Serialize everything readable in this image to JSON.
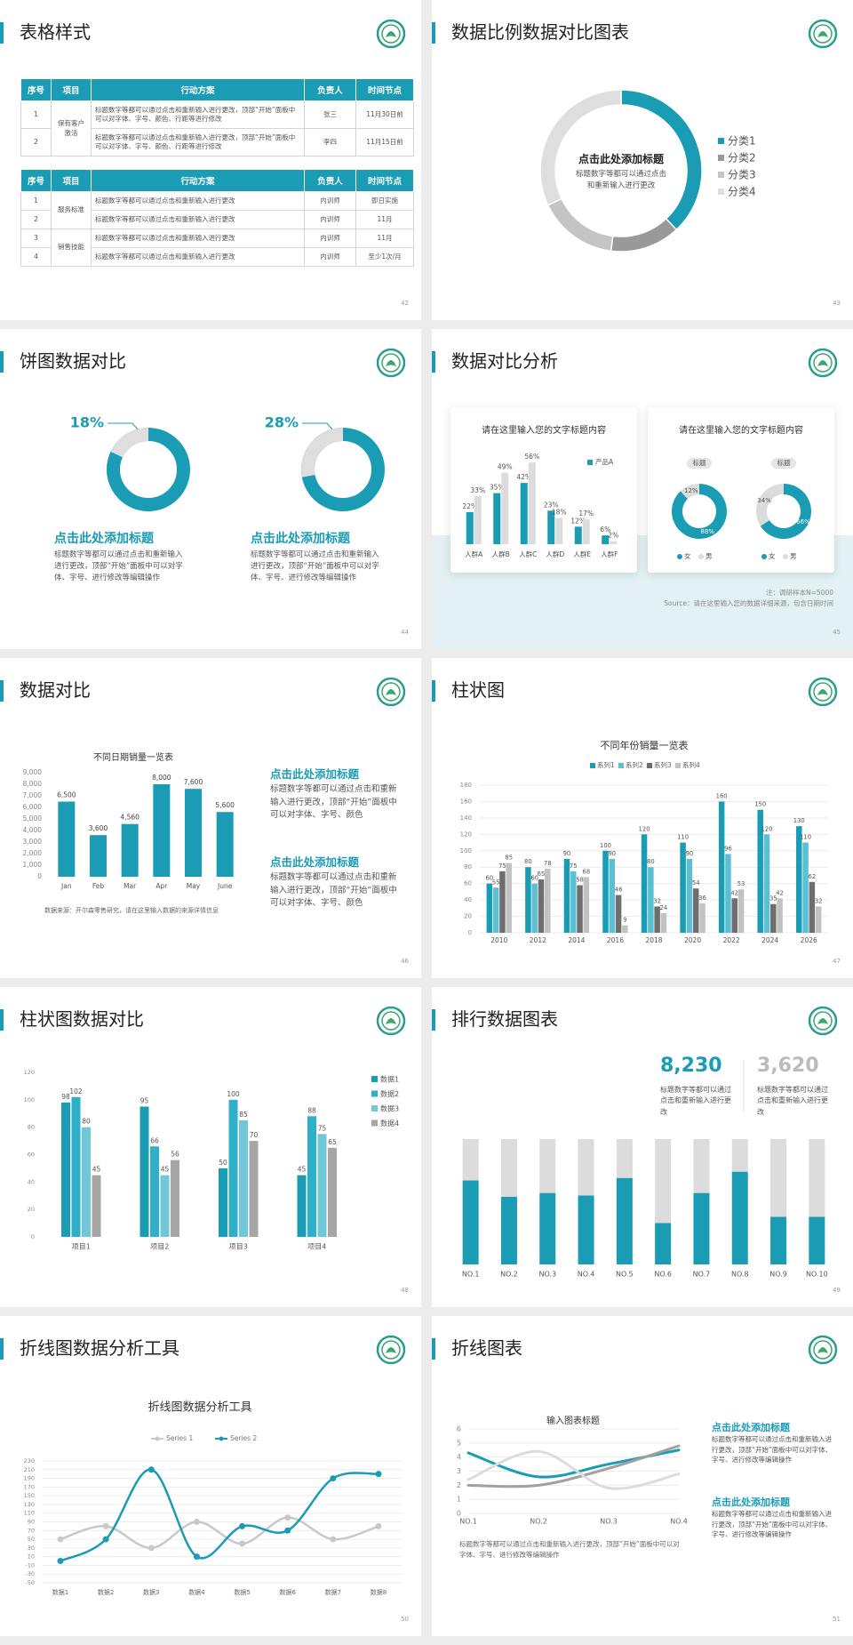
{
  "slides": [
    {
      "title": "表格样式",
      "page": 42,
      "tables": [
        {
          "header": [
            "序号",
            "项目",
            "行动方案",
            "负责人",
            "时间节点"
          ],
          "groups": [
            {
              "item": "保有客户激活",
              "rows": [
                [
                  "1",
                  "标题数字等都可以通过点击和重新输入进行更改，顶部“开始”面板中可以对字体、字号、颜色、行距等进行修改",
                  "张三",
                  "11月30日前"
                ],
                [
                  "2",
                  "标题数字等都可以通过点击和重新输入进行更改，顶部“开始”面板中可以对字体、字号、颜色、行距等进行修改",
                  "李四",
                  "11月15日前"
                ]
              ]
            }
          ]
        },
        {
          "header": [
            "序号",
            "项目",
            "行动方案",
            "负责人",
            "时间节点"
          ],
          "groups": [
            {
              "item": "服务标准",
              "rows": [
                [
                  "1",
                  "标题数字等都可以通过点击和重新输入进行更改",
                  "内训师",
                  "即日实施"
                ],
                [
                  "2",
                  "标题数字等都可以通过点击和重新输入进行更改",
                  "内训师",
                  "11月"
                ]
              ]
            },
            {
              "item": "销售技能",
              "rows": [
                [
                  "3",
                  "标题数字等都可以通过点击和重新输入进行更改",
                  "内训师",
                  "11月"
                ],
                [
                  "4",
                  "标题数字等都可以通过点击和重新输入进行更改",
                  "内训师",
                  "至少1次/月"
                ]
              ]
            }
          ]
        }
      ]
    },
    {
      "title": "数据比例数据对比图表",
      "page": 43,
      "chart_data": {
        "type": "donut",
        "heading": "点击此处添加标题",
        "text": "标题数字等都可以通过点击和重新输入进行更改",
        "categories": [
          "分类1",
          "分类2",
          "分类3",
          "分类4"
        ],
        "values": [
          38,
          14,
          16,
          32
        ],
        "colors": [
          "#1a9cb5",
          "#999999",
          "#c4c4c4",
          "#dedede"
        ]
      }
    },
    {
      "title": "饼图数据对比",
      "page": 44,
      "chart_data": {
        "type": "ring",
        "values": [
          18,
          28
        ],
        "value_labels": [
          "18%",
          "28%"
        ],
        "colors": [
          "#dedede",
          "#1a9cb5"
        ]
      },
      "blocks": [
        {
          "heading": "点击此处添加标题",
          "text": "标题数字等都可以通过点击和重新输入进行更改，顶部“开始”面板中可以对字体、字号、进行修改等编辑操作"
        },
        {
          "heading": "点击此处添加标题",
          "text": "标题数字等都可以通过点击和重新输入进行更改，顶部“开始”面板中可以对字体、字号、进行修改等编辑操作"
        }
      ]
    },
    {
      "title": "数据对比分析",
      "page": 45,
      "cards": [
        {
          "title": "请在这里输入您的文字标题内容",
          "chart_data": {
            "type": "grouped-bar",
            "categories": [
              "人群A",
              "人群B",
              "人群C",
              "人群D",
              "人群E",
              "人群F"
            ],
            "series": [
              {
                "name": "产品A",
                "color": "#1a9cb5",
                "values": [
                  22,
                  35,
                  42,
                  23,
                  12,
                  6
                ],
                "value_labels": [
                  "22%",
                  "35%",
                  "42%",
                  "23%",
                  "12%",
                  "6%"
                ]
              },
              {
                "color": "#dcdcdc",
                "values": [
                  33,
                  49,
                  56,
                  18,
                  17,
                  2
                ],
                "value_labels": [
                  "33%",
                  "49%",
                  "56%",
                  "18%",
                  "17%",
                  "2%"
                ]
              }
            ]
          }
        },
        {
          "title": "请在这里输入您的文字标题内容",
          "chart_data": {
            "type": "donut-pair",
            "categories": [
              "女",
              "男"
            ],
            "colors": [
              "#1a9cb5",
              "#dcdcdc"
            ],
            "donuts": [
              {
                "label": "标题",
                "values": [
                  88,
                  12
                ],
                "value_labels": [
                  "88%",
                  "12%"
                ]
              },
              {
                "label": "标题",
                "values": [
                  66,
                  34
                ],
                "value_labels": [
                  "66%",
                  "34%"
                ]
              }
            ]
          }
        }
      ],
      "notes": [
        "注：调研样本N=5000",
        "Source：请在这里输入您的数据详细来源，包含日期时间"
      ]
    },
    {
      "title": "数据对比",
      "page": 46,
      "chart_data": {
        "type": "bar",
        "title": "不同日期销量一览表",
        "categories": [
          "Jan",
          "Feb",
          "Mar",
          "Apr",
          "May",
          "June"
        ],
        "values": [
          6500,
          3600,
          4560,
          8000,
          7600,
          5600
        ],
        "value_labels": [
          "6,500",
          "3,600",
          "4,560",
          "8,000",
          "7,600",
          "5,600"
        ],
        "color": "#1a9cb5",
        "ylim": [
          0,
          9000
        ],
        "yticks": [
          0,
          {
            "value": 1000,
            "label": "1,000"
          },
          {
            "value": 2000,
            "label": "2,000"
          },
          {
            "value": 3000,
            "label": "3,000"
          },
          {
            "value": 4000,
            "label": "4,000"
          },
          {
            "value": 5000,
            "label": "5,000"
          },
          {
            "value": 6000,
            "label": "6,000"
          },
          {
            "value": 7000,
            "label": "7,000"
          },
          {
            "value": 8000,
            "label": "8,000"
          },
          {
            "value": 9000,
            "label": "9,000"
          }
        ],
        "source": "数据来源：开尔森零售研究，请在这里输入数据的来源详情信息"
      },
      "blocks": [
        {
          "heading": "点击此处添加标题",
          "text": "标题数字等都可以通过点击和重新输入进行更改，顶部“开始”面板中可以对字体、字号、颜色"
        },
        {
          "heading": "点击此处添加标题",
          "text": "标题数字等都可以通过点击和重新输入进行更改，顶部“开始”面板中可以对字体、字号、颜色"
        }
      ]
    },
    {
      "title": "柱状图",
      "page": 47,
      "chart_data": {
        "type": "grouped-bar",
        "title": "不同年份销量一览表",
        "legend": "top",
        "grid": true,
        "categories": [
          "2010",
          "2012",
          "2014",
          "2016",
          "2018",
          "2020",
          "2022",
          "2024",
          "2026"
        ],
        "ylim": [
          0,
          180
        ],
        "yticks": [
          0,
          20,
          40,
          60,
          80,
          100,
          120,
          140,
          160,
          180
        ],
        "series": [
          {
            "name": "系列1",
            "color": "#1a9cb5",
            "values": [
              60,
              80,
              90,
              100,
              120,
              110,
              160,
              150,
              130
            ]
          },
          {
            "name": "系列2",
            "color": "#5cbfd3",
            "values": [
              55,
              60,
              75,
              90,
              80,
              90,
              96,
              120,
              110
            ]
          },
          {
            "name": "系列3",
            "color": "#6e6e6e",
            "values": [
              75,
              65,
              58,
              46,
              32,
              54,
              42,
              35,
              62
            ]
          },
          {
            "name": "系列4",
            "color": "#c2c2c2",
            "values": [
              85,
              78,
              68,
              9,
              24,
              36,
              53,
              42,
              32
            ]
          }
        ]
      }
    },
    {
      "title": "柱状图数据对比",
      "page": 48,
      "chart_data": {
        "type": "grouped-bar",
        "legend": "right",
        "categories": [
          "项目1",
          "项目2",
          "项目3",
          "项目4"
        ],
        "ylim": [
          0,
          120
        ],
        "yticks": [
          0,
          20,
          40,
          60,
          80,
          100,
          120
        ],
        "series": [
          {
            "name": "数据1",
            "color": "#1a9cb5",
            "values": [
              98,
              95,
              50,
              45
            ]
          },
          {
            "name": "数据2",
            "color": "#2fb0c9",
            "values": [
              102,
              66,
              100,
              88
            ]
          },
          {
            "name": "数据3",
            "color": "#6fc7d8",
            "values": [
              80,
              45,
              85,
              75
            ]
          },
          {
            "name": "数据4",
            "color": "#a6a6a6",
            "values": [
              45,
              56,
              70,
              65
            ]
          }
        ]
      }
    },
    {
      "title": "排行数据图表",
      "page": 49,
      "stats": [
        {
          "value": "8,230",
          "text": "标题数字等都可以通过点击和重新输入进行更改"
        },
        {
          "value": "3,620",
          "text": "标题数字等都可以通过点击和重新输入进行更改"
        }
      ],
      "chart_data": {
        "type": "stacked-bar",
        "categories": [
          "NO.1",
          "NO.2",
          "NO.3",
          "NO.4",
          "NO.5",
          "NO.6",
          "NO.7",
          "NO.8",
          "NO.9",
          "NO.10"
        ],
        "series": [
          {
            "color": "#1a9cb5",
            "values": [
              67,
              54,
              57,
              55,
              69,
              33,
              57,
              74,
              38,
              38
            ]
          },
          {
            "color": "#dcdcdc",
            "values": [
              33,
              46,
              43,
              45,
              31,
              67,
              43,
              26,
              62,
              62
            ]
          }
        ]
      }
    },
    {
      "title": "折线图数据分析工具",
      "page": 50,
      "chart_data": {
        "type": "line",
        "title": "折线图数据分析工具",
        "smooth": true,
        "markers": true,
        "grid": true,
        "categories": [
          "数据1",
          "数据2",
          "数据3",
          "数据4",
          "数据5",
          "数据6",
          "数据7",
          "数据8"
        ],
        "ylim": [
          -50,
          230
        ],
        "yticks": [
          -50,
          -30,
          -10,
          10,
          30,
          50,
          70,
          90,
          110,
          130,
          150,
          170,
          190,
          210,
          230
        ],
        "series": [
          {
            "name": "Series 1",
            "color": "#c8c8c8",
            "values": [
              50,
              80,
              30,
              90,
              40,
              100,
              50,
              80
            ]
          },
          {
            "name": "Series 2",
            "color": "#1a9cb5",
            "values": [
              0,
              50,
              210,
              10,
              80,
              70,
              190,
              200
            ]
          }
        ]
      }
    },
    {
      "title": "折线图表",
      "page": 51,
      "chart_data": {
        "type": "line",
        "title": "输入图表标题",
        "smooth": true,
        "grid": true,
        "categories": [
          "NO.1",
          "NO.2",
          "NO.3",
          "NO.4"
        ],
        "ylim": [
          0,
          6
        ],
        "yticks": [
          0,
          1,
          2,
          3,
          4,
          5,
          6
        ],
        "series": [
          {
            "color": "#1a9cb5",
            "values": [
              4.3,
              2.6,
              3.5,
              4.5
            ]
          },
          {
            "color": "#a0a0a0",
            "values": [
              2,
              2,
              3.2,
              4.8
            ]
          },
          {
            "color": "#dcdcdc",
            "values": [
              2.4,
              4.4,
              1.8,
              2.8
            ]
          }
        ]
      },
      "blocks": [
        {
          "heading": "点击此处添加标题",
          "text": "标题数字等都可以通过点击和重新输入进行更改，顶部“开始”面板中可以对字体、字号、进行修改等编辑操作"
        },
        {
          "heading": "点击此处添加标题",
          "text": "标题数字等都可以通过点击和重新输入进行更改，顶部“开始”面板中可以对字体、字号、进行修改等编辑操作"
        }
      ],
      "note": "标题数字等都可以通过点击和重新输入进行更改，顶部“开始”面板中可以对字体、字号、进行修改等编辑操作"
    }
  ]
}
